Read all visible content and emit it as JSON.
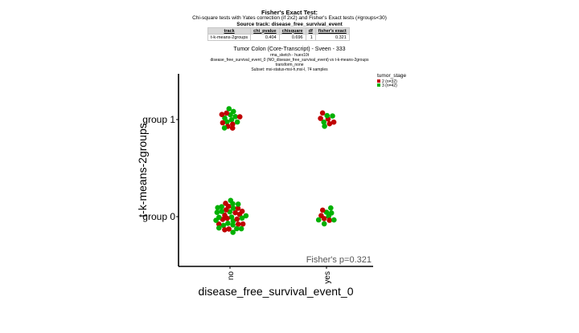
{
  "fisher_header": {
    "title": "Fisher's Exact Test:",
    "subtitle": "Chi-square tests with Yates correction (if 2x2) and Fisher's Exact tests (#groups<30)",
    "source_track": "Source track: disease_free_survival_event"
  },
  "results_table": {
    "columns": [
      "track",
      "chi_pvalue",
      "chisquare",
      "df",
      "fisher's exact"
    ],
    "rows": [
      [
        "t-k-means-2groups",
        "0.404",
        "0.696",
        "1",
        "0.321"
      ]
    ]
  },
  "chart_meta": {
    "title": "Tumor Colon (Core-Transcript) - Sveen - 333",
    "lines": [
      "rma_sketch - huex10t",
      "disease_free_survival_event_0 (NO_disease_free_survival_event) vs t-k-means-2groups",
      "transform_none",
      "Subset: msi-status-msi-h,msi-l, 74 samples"
    ]
  },
  "colors": {
    "stage2": "#c00000",
    "stage3": "#00b000"
  },
  "chart_data": {
    "type": "scatter",
    "xlabel": "disease_free_survival_event_0",
    "ylabel": "t-k-means-2groups",
    "x_categories": [
      "no",
      "yes"
    ],
    "y_categories": [
      "group 0",
      "group 1"
    ],
    "legend": {
      "title": "tumor_stage",
      "placement": "top-right",
      "entries": [
        {
          "label": "2 (n=32)",
          "color": "#c00000"
        },
        {
          "label": "3 (n=42)",
          "color": "#00b000"
        }
      ]
    },
    "annotation": "Fisher's p=0.321",
    "cells": [
      {
        "x": "no",
        "y": "group 1",
        "stage2": 7,
        "stage3": 9
      },
      {
        "x": "yes",
        "y": "group 1",
        "stage2": 5,
        "stage3": 4
      },
      {
        "x": "no",
        "y": "group 0",
        "stage2": 16,
        "stage3": 22
      },
      {
        "x": "yes",
        "y": "group 0",
        "stage2": 4,
        "stage3": 7
      }
    ]
  }
}
